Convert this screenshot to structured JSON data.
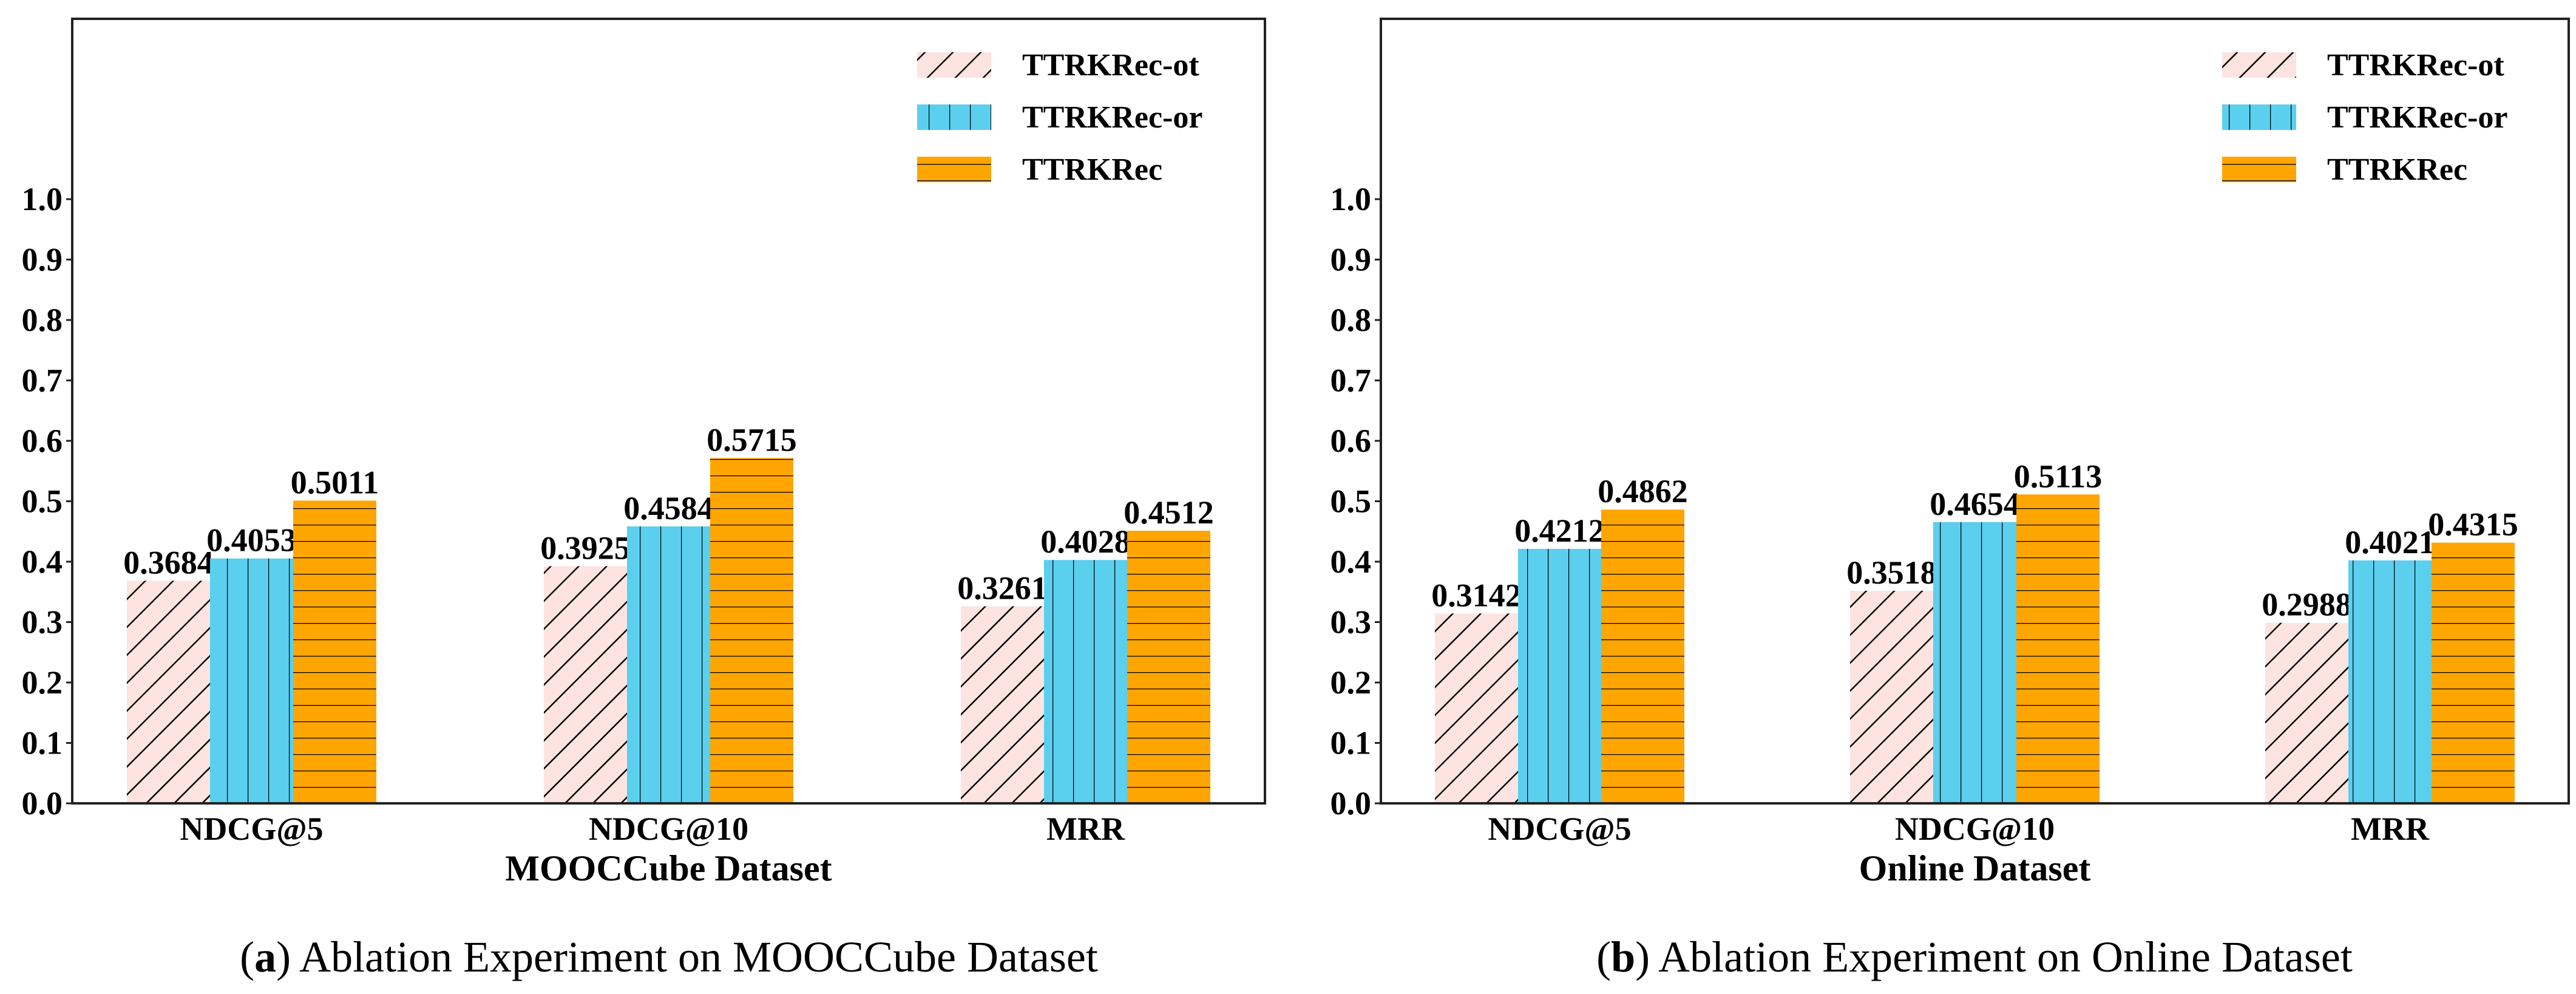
{
  "colors": {
    "ot": "#fde4e0",
    "or": "#5bcfee",
    "rec": "#ffa500",
    "hatch": "#000000"
  },
  "chart_data": [
    {
      "type": "bar",
      "title": "",
      "xlabel": "MOOCCube Dataset",
      "ylabel": "",
      "ylim": [
        0,
        1.0
      ],
      "yticks": [
        "0.0",
        "0.1",
        "0.2",
        "0.3",
        "0.4",
        "0.5",
        "0.6",
        "0.7",
        "0.8",
        "0.9",
        "1.0"
      ],
      "categories": [
        "NDCG@5",
        "NDCG@10",
        "MRR"
      ],
      "legend_position": "top-right",
      "series": [
        {
          "name": "TTRKRec-ot",
          "key": "ot",
          "hatch": "diagonal",
          "values": [
            0.3684,
            0.3925,
            0.3261
          ],
          "labels": [
            "0.3684",
            "0.3925",
            "0.3261"
          ]
        },
        {
          "name": "TTRKRec-or",
          "key": "or",
          "hatch": "vertical",
          "values": [
            0.4053,
            0.4584,
            0.4028
          ],
          "labels": [
            "0.4053",
            "0.4584",
            "0.4028"
          ]
        },
        {
          "name": "TTRKRec",
          "key": "rec",
          "hatch": "horizontal",
          "values": [
            0.5011,
            0.5715,
            0.4512
          ],
          "labels": [
            "0.5011",
            "0.5715",
            "0.4512"
          ]
        }
      ],
      "caption_prefix": "(",
      "caption_letter": "a",
      "caption_text": ") Ablation Experiment on MOOCCube Dataset"
    },
    {
      "type": "bar",
      "title": "",
      "xlabel": "Online Dataset",
      "ylabel": "",
      "ylim": [
        0,
        1.0
      ],
      "yticks": [
        "0.0",
        "0.1",
        "0.2",
        "0.3",
        "0.4",
        "0.5",
        "0.6",
        "0.7",
        "0.8",
        "0.9",
        "1.0"
      ],
      "categories": [
        "NDCG@5",
        "NDCG@10",
        "MRR"
      ],
      "legend_position": "top-right",
      "series": [
        {
          "name": "TTRKRec-ot",
          "key": "ot",
          "hatch": "diagonal",
          "values": [
            0.3142,
            0.3518,
            0.2988
          ],
          "labels": [
            "0.3142",
            "0.3518",
            "0.2988"
          ]
        },
        {
          "name": "TTRKRec-or",
          "key": "or",
          "hatch": "vertical",
          "values": [
            0.4212,
            0.4654,
            0.4021
          ],
          "labels": [
            "0.4212",
            "0.4654",
            "0.4021"
          ]
        },
        {
          "name": "TTRKRec",
          "key": "rec",
          "hatch": "horizontal",
          "values": [
            0.4862,
            0.5113,
            0.4315
          ],
          "labels": [
            "0.4862",
            "0.5113",
            "0.4315"
          ]
        }
      ],
      "caption_prefix": "(",
      "caption_letter": "b",
      "caption_text": ") Ablation Experiment on Online Dataset"
    }
  ]
}
